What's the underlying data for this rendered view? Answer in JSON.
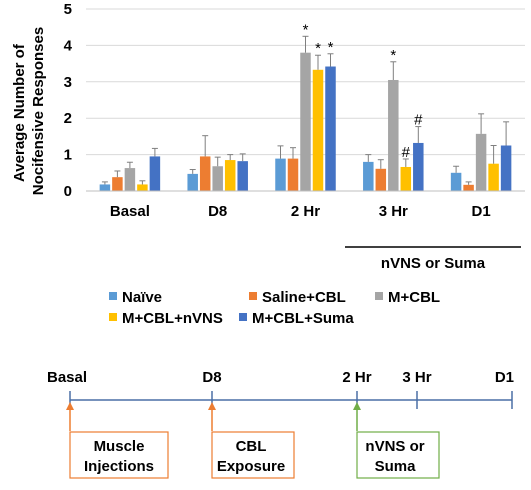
{
  "chart_data": {
    "type": "bar",
    "ylabel": "Average Number of Nocifensive Responses",
    "ylabel_lines": [
      "Average Number of",
      "Nocifensive Responses"
    ],
    "ylim": [
      0,
      5
    ],
    "yticks": [
      "0",
      "1",
      "2",
      "3",
      "4",
      "5"
    ],
    "grid": true,
    "legend_placement": "bottom",
    "categories": [
      "Basal",
      "D8",
      "2 Hr",
      "3 Hr",
      "D1"
    ],
    "group_label": "nVNS or Suma",
    "series": [
      {
        "name": "Naïve",
        "color": "#5b9bd5",
        "values": [
          0.18,
          0.47,
          0.89,
          0.8,
          0.5
        ],
        "errors": [
          0.07,
          0.12,
          0.35,
          0.2,
          0.18
        ]
      },
      {
        "name": "Saline+CBL",
        "color": "#ed7d31",
        "values": [
          0.38,
          0.95,
          0.89,
          0.61,
          0.17
        ],
        "errors": [
          0.17,
          0.57,
          0.3,
          0.25,
          0.08
        ]
      },
      {
        "name": "M+CBL",
        "color": "#a5a5a5",
        "values": [
          0.63,
          0.68,
          3.8,
          3.05,
          1.57
        ],
        "errors": [
          0.16,
          0.25,
          0.45,
          0.5,
          0.55
        ]
      },
      {
        "name": "M+CBL+nVNS",
        "color": "#ffc000",
        "values": [
          0.18,
          0.85,
          3.33,
          0.66,
          0.75
        ],
        "errors": [
          0.1,
          0.15,
          0.4,
          0.22,
          0.5
        ]
      },
      {
        "name": "M+CBL+Suma",
        "color": "#4472c4",
        "values": [
          0.95,
          0.82,
          3.42,
          1.32,
          1.25
        ],
        "errors": [
          0.22,
          0.2,
          0.35,
          0.45,
          0.65
        ]
      }
    ],
    "annotations": [
      {
        "category": "2 Hr",
        "series": "M+CBL",
        "text": "*"
      },
      {
        "category": "2 Hr",
        "series": "M+CBL+nVNS",
        "text": "*"
      },
      {
        "category": "2 Hr",
        "series": "M+CBL+Suma",
        "text": "*"
      },
      {
        "category": "3 Hr",
        "series": "M+CBL",
        "text": "*"
      },
      {
        "category": "3 Hr",
        "series": "M+CBL+nVNS",
        "text": "#"
      },
      {
        "category": "3 Hr",
        "series": "M+CBL+Suma",
        "text": "#"
      }
    ]
  },
  "timeline": {
    "points": [
      "Basal",
      "D8",
      "2 Hr",
      "3 Hr",
      "D1"
    ],
    "boxes": [
      {
        "lines": [
          "Muscle",
          "Injections"
        ],
        "color": "#ed7d31"
      },
      {
        "lines": [
          "CBL",
          "Exposure"
        ],
        "color": "#ed7d31"
      },
      {
        "lines": [
          "nVNS or",
          "Suma"
        ],
        "color": "#70ad47"
      }
    ],
    "line_color": "#4a6fa5"
  }
}
